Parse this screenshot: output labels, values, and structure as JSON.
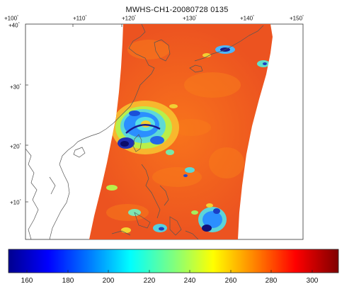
{
  "map": {
    "title": "MWHS-CH1-20080728 0135",
    "lon_ticks": [
      "+100",
      "+110",
      "+120",
      "+130",
      "+140",
      "+150"
    ],
    "lat_ticks": [
      "+40",
      "+30",
      "+20",
      "+10"
    ],
    "degree_mark": "°",
    "colors": {
      "background": "#f05a1e",
      "land_outline": "#555555",
      "cold_core": "#1a1a8c"
    }
  },
  "colorbar": {
    "ticks": [
      "160",
      "180",
      "200",
      "220",
      "240",
      "260",
      "280",
      "300"
    ],
    "range": [
      150,
      315
    ],
    "stops": [
      "#00008f",
      "#0000ff",
      "#007fff",
      "#00ffff",
      "#7fff7f",
      "#ffff00",
      "#ff7f00",
      "#ff0000",
      "#7f0000"
    ]
  }
}
